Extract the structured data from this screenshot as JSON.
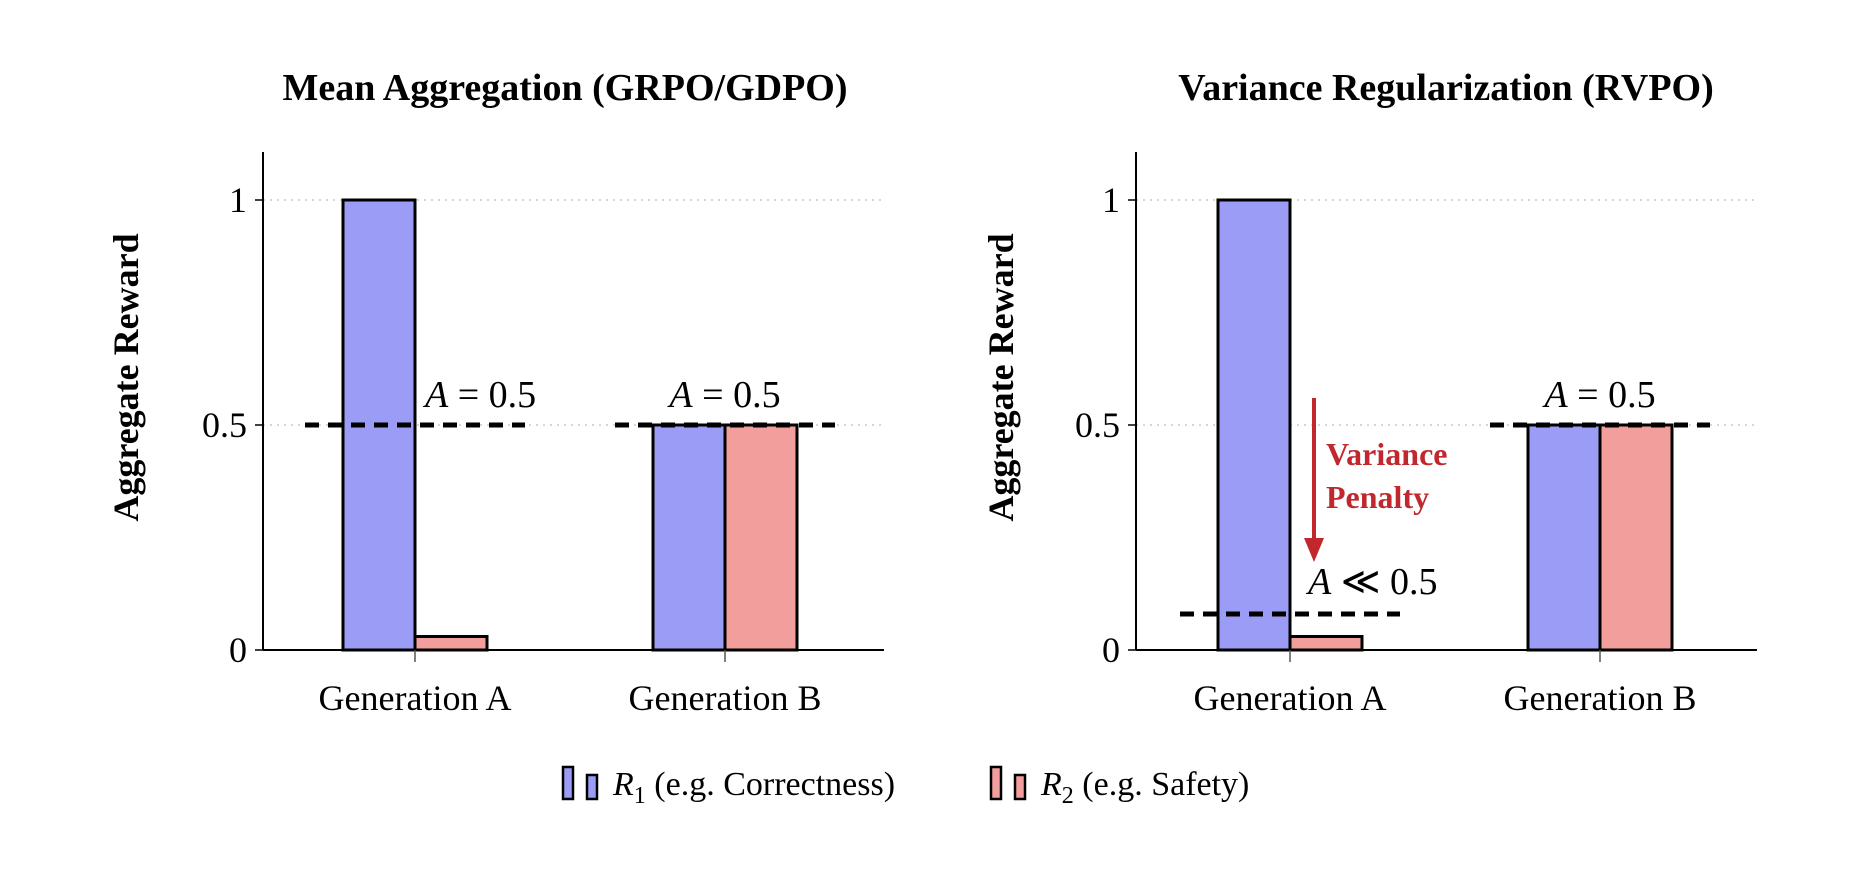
{
  "chart_data": [
    {
      "type": "bar",
      "title": "Mean Aggregation (GRPO/GDPO)",
      "ylabel": "Aggregate Reward",
      "ylim": [
        0,
        1.1
      ],
      "yticks": [
        {
          "value": 0,
          "label": "0"
        },
        {
          "value": 0.5,
          "label": "0.5"
        },
        {
          "value": 1,
          "label": "1"
        }
      ],
      "grid": true,
      "categories": [
        "Generation A",
        "Generation B"
      ],
      "series": [
        {
          "key": "r1",
          "values": [
            1.0,
            0.5
          ],
          "color": "#9a9cf5"
        },
        {
          "key": "r2",
          "values": [
            0.03,
            0.5
          ],
          "color": "#f29e9c"
        }
      ],
      "dashed_lines": [
        {
          "category": "Generation A",
          "value": 0.5,
          "label_var": "A",
          "label_rel": "=",
          "label_val": "0.5"
        },
        {
          "category": "Generation B",
          "value": 0.5,
          "label_var": "A",
          "label_rel": "=",
          "label_val": "0.5"
        }
      ]
    },
    {
      "type": "bar",
      "title": "Variance Regularization (RVPO)",
      "ylabel": "Aggregate Reward",
      "ylim": [
        0,
        1.1
      ],
      "yticks": [
        {
          "value": 0,
          "label": "0"
        },
        {
          "value": 0.5,
          "label": "0.5"
        },
        {
          "value": 1,
          "label": "1"
        }
      ],
      "grid": true,
      "categories": [
        "Generation A",
        "Generation B"
      ],
      "series": [
        {
          "key": "r1",
          "values": [
            1.0,
            0.5
          ],
          "color": "#9a9cf5"
        },
        {
          "key": "r2",
          "values": [
            0.03,
            0.5
          ],
          "color": "#f29e9c"
        }
      ],
      "dashed_lines": [
        {
          "category": "Generation A",
          "value": 0.08,
          "label_var": "A",
          "label_rel": "≪",
          "label_val": "0.5"
        },
        {
          "category": "Generation B",
          "value": 0.5,
          "label_var": "A",
          "label_rel": "=",
          "label_val": "0.5"
        }
      ],
      "arrow": {
        "from": 0.56,
        "to": 0.2,
        "color": "#c0282d",
        "label_lines": [
          "Variance",
          "Penalty"
        ]
      }
    }
  ],
  "legend": {
    "items": [
      {
        "key": "r1",
        "symbol": "R",
        "subscript": "1",
        "text": "(e.g. Correctness)",
        "color": "#9a9cf5"
      },
      {
        "key": "r2",
        "symbol": "R",
        "subscript": "2",
        "text": "(e.g. Safety)",
        "color": "#f29e9c"
      }
    ]
  }
}
